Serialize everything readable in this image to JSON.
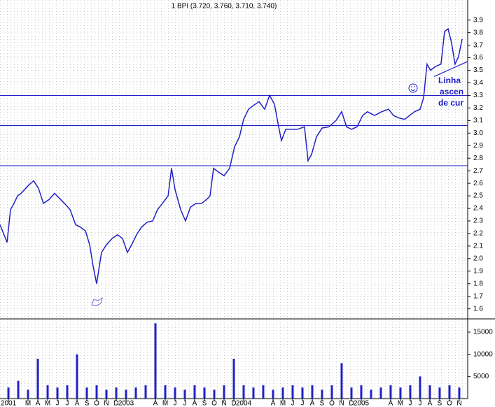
{
  "chart_data": [
    {
      "type": "line",
      "title": "1 BPI (3.720, 3.760, 3.710, 3.740)",
      "x": [
        -0.86,
        -0.14,
        0.21,
        0.57,
        0.93,
        1.29,
        2.0,
        2.57,
        3.07,
        3.57,
        4.14,
        4.71,
        5.21,
        5.71,
        6.29,
        6.86,
        7.36,
        7.86,
        8.29,
        8.64,
        9.0,
        9.5,
        10.0,
        10.57,
        11.14,
        11.64,
        12.14,
        12.57,
        13.07,
        13.57,
        14.14,
        14.71,
        15.21,
        15.71,
        16.29,
        16.64,
        17.0,
        17.57,
        18.07,
        18.57,
        19.14,
        19.71,
        20.21,
        20.57,
        20.93,
        21.43,
        22.0,
        22.57,
        23.07,
        23.57,
        24.0,
        24.5,
        25.0,
        25.57,
        26.14,
        26.64,
        27.14,
        27.57,
        27.86,
        28.29,
        28.79,
        29.5,
        30.21,
        30.57,
        30.93,
        31.43,
        32.0,
        32.71,
        33.43,
        34.0,
        34.5,
        35.0,
        35.57,
        36.14,
        36.64,
        37.36,
        38.07,
        38.79,
        39.29,
        39.86,
        40.43,
        40.93,
        41.43,
        42.0,
        42.36,
        42.71,
        43.07,
        43.57,
        44.14,
        44.5,
        44.86,
        45.21,
        45.57,
        45.93,
        46.29
      ],
      "series": [
        {
          "color": "#2020c8",
          "values": [
            2.27,
            2.13,
            2.39,
            2.44,
            2.5,
            2.52,
            2.58,
            2.62,
            2.56,
            2.44,
            2.47,
            2.52,
            2.48,
            2.44,
            2.39,
            2.27,
            2.25,
            2.22,
            2.11,
            1.94,
            1.8,
            2.05,
            2.11,
            2.16,
            2.19,
            2.16,
            2.05,
            2.11,
            2.19,
            2.25,
            2.29,
            2.3,
            2.39,
            2.44,
            2.5,
            2.72,
            2.55,
            2.39,
            2.3,
            2.41,
            2.44,
            2.44,
            2.47,
            2.5,
            2.72,
            2.69,
            2.66,
            2.72,
            2.89,
            2.97,
            3.11,
            3.19,
            3.22,
            3.25,
            3.19,
            3.3,
            3.23,
            3.05,
            2.94,
            3.03,
            3.03,
            3.03,
            3.05,
            2.78,
            2.83,
            2.97,
            3.04,
            3.05,
            3.1,
            3.17,
            3.05,
            3.03,
            3.05,
            3.14,
            3.17,
            3.14,
            3.17,
            3.19,
            3.14,
            3.12,
            3.11,
            3.14,
            3.17,
            3.19,
            3.28,
            3.55,
            3.5,
            3.53,
            3.55,
            3.81,
            3.83,
            3.72,
            3.55,
            3.61,
            3.75
          ]
        }
      ],
      "xlim": [
        -0.86,
        46.86
      ],
      "xticks": [
        {
          "value": 0,
          "label": "2001"
        },
        {
          "value": 2,
          "label": "M"
        },
        {
          "value": 3,
          "label": "A"
        },
        {
          "value": 4,
          "label": "M"
        },
        {
          "value": 5,
          "label": "J"
        },
        {
          "value": 6,
          "label": "J"
        },
        {
          "value": 7,
          "label": "A"
        },
        {
          "value": 8,
          "label": "S"
        },
        {
          "value": 9,
          "label": "O"
        },
        {
          "value": 10,
          "label": "N"
        },
        {
          "value": 11,
          "label": "D"
        },
        {
          "value": 12,
          "label": "2003"
        },
        {
          "value": 15,
          "label": "A"
        },
        {
          "value": 16,
          "label": "M"
        },
        {
          "value": 17,
          "label": "J"
        },
        {
          "value": 18,
          "label": "J"
        },
        {
          "value": 19,
          "label": "A"
        },
        {
          "value": 20,
          "label": "S"
        },
        {
          "value": 21,
          "label": "O"
        },
        {
          "value": 22,
          "label": "N"
        },
        {
          "value": 23,
          "label": "D"
        },
        {
          "value": 24,
          "label": "2004"
        },
        {
          "value": 27,
          "label": "A"
        },
        {
          "value": 28,
          "label": "M"
        },
        {
          "value": 29,
          "label": "J"
        },
        {
          "value": 30,
          "label": "J"
        },
        {
          "value": 31,
          "label": "A"
        },
        {
          "value": 32,
          "label": "S"
        },
        {
          "value": 33,
          "label": "O"
        },
        {
          "value": 34,
          "label": "N"
        },
        {
          "value": 35,
          "label": "D"
        },
        {
          "value": 36,
          "label": "2005"
        },
        {
          "value": 39,
          "label": "A"
        },
        {
          "value": 40,
          "label": "M"
        },
        {
          "value": 41,
          "label": "J"
        },
        {
          "value": 42,
          "label": "J"
        },
        {
          "value": 43,
          "label": "A"
        },
        {
          "value": 44,
          "label": "S"
        },
        {
          "value": 45,
          "label": "O"
        },
        {
          "value": 46,
          "label": "N"
        }
      ],
      "ylim": [
        1.52,
        4.06
      ],
      "yticks": [
        1.6,
        1.7,
        1.8,
        1.9,
        {
          "value": 2,
          "label": "2.0"
        },
        2.1,
        2.2,
        2.3,
        2.4,
        2.5,
        2.6,
        2.7,
        2.8,
        2.9,
        {
          "value": 3,
          "label": "3.0"
        },
        3.1,
        3.2,
        3.3,
        3.4,
        3.5,
        3.6,
        3.7,
        3.8,
        3.9
      ],
      "hlines": [
        3.3,
        3.06,
        2.74
      ],
      "trendline": {
        "x": [
          43.43,
          46.86
        ],
        "values": [
          3.45,
          3.57
        ]
      },
      "annotations": [
        "Linha",
        "ascen",
        "de cur"
      ],
      "grid": true
    },
    {
      "type": "bar",
      "x": [
        0,
        1,
        2,
        3,
        4,
        5,
        6,
        7,
        8,
        9,
        10,
        11,
        12,
        13,
        14,
        15,
        16,
        17,
        18,
        19,
        20,
        21,
        22,
        23,
        24,
        25,
        26,
        27,
        28,
        29,
        30,
        31,
        32,
        33,
        34,
        35,
        36,
        37,
        38,
        39,
        40,
        41,
        42,
        43,
        44,
        45,
        46
      ],
      "series": [
        {
          "color": "#2020c8",
          "values": [
            2500,
            4000,
            2000,
            9000,
            3000,
            2500,
            3000,
            10000,
            2500,
            3000,
            2000,
            2500,
            2000,
            2500,
            3000,
            17000,
            3000,
            2500,
            2000,
            3000,
            2500,
            2000,
            3000,
            9000,
            3000,
            2500,
            3000,
            2000,
            2500,
            3000,
            2500,
            3000,
            2000,
            3000,
            8000,
            2500,
            3000,
            2000,
            2500,
            3000,
            2500,
            3000,
            5000,
            3000,
            2500,
            3000,
            2500
          ]
        }
      ],
      "ylim": [
        0,
        18000
      ],
      "yticks": [
        5000,
        10000,
        15000
      ]
    }
  ]
}
